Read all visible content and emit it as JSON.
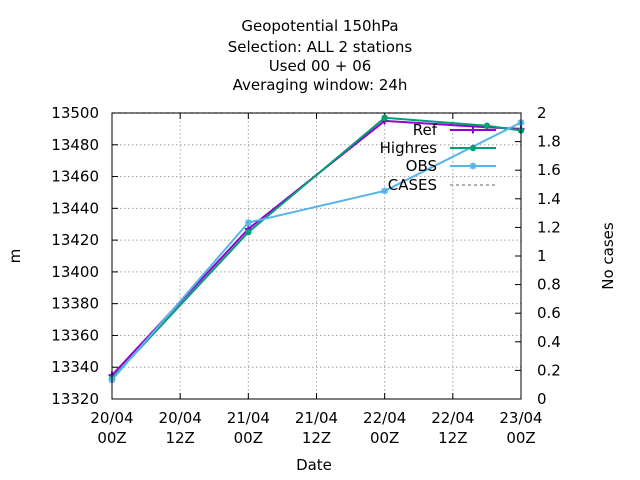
{
  "chart_data": {
    "type": "line",
    "title_lines": [
      "Geopotential 150hPa",
      "Selection: ALL      2 stations",
      "Used  00 + 06",
      "Averaging window: 24h"
    ],
    "xlabel": "Date",
    "ylabel": "m",
    "y2label": "No cases",
    "xlim": [
      0,
      72
    ],
    "ylim": [
      13320,
      13500
    ],
    "y2lim": [
      0,
      2
    ],
    "x_ticks": [
      {
        "x": 0,
        "line1": "20/04",
        "line2": "00Z"
      },
      {
        "x": 12,
        "line1": "20/04",
        "line2": "12Z"
      },
      {
        "x": 24,
        "line1": "21/04",
        "line2": "00Z"
      },
      {
        "x": 36,
        "line1": "21/04",
        "line2": "12Z"
      },
      {
        "x": 48,
        "line1": "22/04",
        "line2": "00Z"
      },
      {
        "x": 60,
        "line1": "22/04",
        "line2": "12Z"
      },
      {
        "x": 72,
        "line1": "23/04",
        "line2": "00Z"
      }
    ],
    "y_ticks": [
      13320,
      13340,
      13360,
      13380,
      13400,
      13420,
      13440,
      13460,
      13480,
      13500
    ],
    "y2_ticks": [
      "0",
      "0.2",
      "0.4",
      "0.6",
      "0.8",
      "1",
      "1.2",
      "1.4",
      "1.6",
      "1.8",
      "2"
    ],
    "grid": true,
    "legend_position": "top-right",
    "series": [
      {
        "name": "Ref",
        "color": "#9400d3",
        "marker": "plus",
        "axis": "y1",
        "x": [
          0,
          24,
          48,
          66,
          72
        ],
        "values": [
          13335,
          13427,
          13495,
          13491,
          13490
        ]
      },
      {
        "name": "Highres",
        "color": "#009e73",
        "marker": "circle",
        "axis": "y1",
        "x": [
          0,
          24,
          48,
          66,
          72
        ],
        "values": [
          13333,
          13425,
          13497,
          13492,
          13489
        ]
      },
      {
        "name": "OBS",
        "color": "#56b4e9",
        "marker": "star",
        "axis": "y1",
        "x": [
          0,
          24,
          48,
          72
        ],
        "values": [
          13332,
          13431,
          13451,
          13494
        ]
      },
      {
        "name": "CASES",
        "color": "#808080",
        "marker": "none",
        "dash": true,
        "axis": "y2",
        "x": [
          0,
          24,
          48,
          72
        ],
        "values": [
          2,
          2,
          2,
          2
        ]
      }
    ]
  }
}
